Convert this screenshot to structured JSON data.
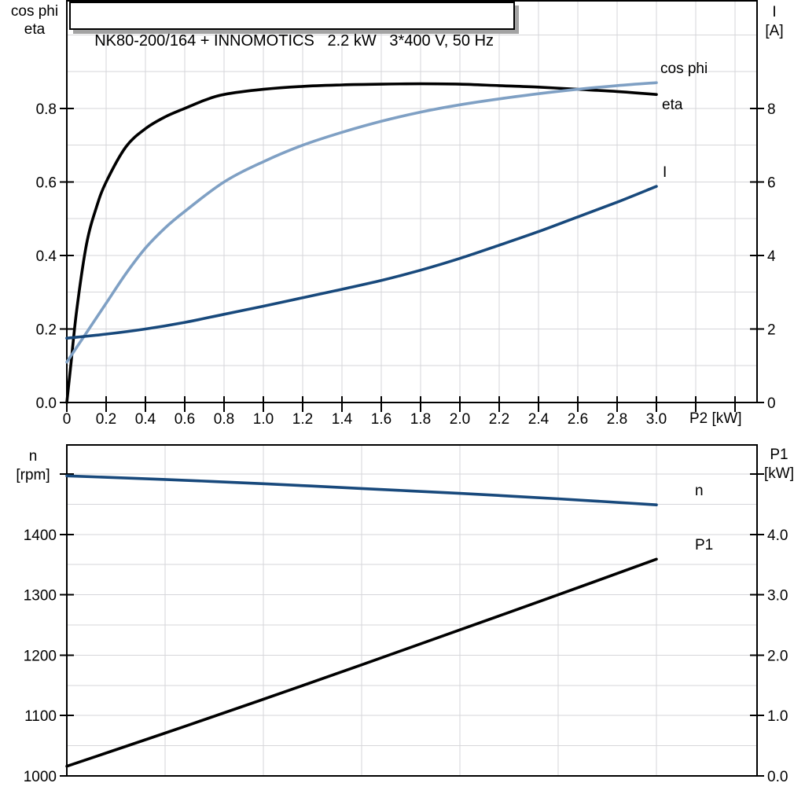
{
  "page": {
    "background": "#ffffff"
  },
  "title_box": {
    "text": "NK80-200/164 + INNOMOTICS   2.2 kW   3*400 V, 50 Hz"
  },
  "colors": {
    "black": "#000000",
    "steel_blue": "#7fa0c4",
    "navy": "#18497c",
    "grid": "#d6d6da",
    "shadow": "#a3a3a3"
  },
  "chart_data": [
    {
      "type": "line",
      "title": "NK80-200/164 + INNOMOTICS   2.2 kW   3*400 V, 50 Hz",
      "x_axis": {
        "label": "P2 [kW]",
        "min": 0,
        "max": 3.512,
        "tick_step": 0.2,
        "major_tick_labels": [
          "0",
          "0.2",
          "0.4",
          "0.6",
          "0.8",
          "1.0",
          "1.2",
          "1.4",
          "1.6",
          "1.8",
          "2.0",
          "2.2",
          "2.4",
          "2.6",
          "2.8",
          "3.0"
        ],
        "unlabeled_ticks": [
          3.2,
          3.4
        ],
        "grid_step": 0.2
      },
      "left_axis": {
        "title_lines": [
          "cos phi",
          "eta"
        ],
        "min": 0,
        "max": 1.095,
        "tick_values": [
          0,
          0.2,
          0.4,
          0.6,
          0.8
        ],
        "tick_labels": [
          "0.0",
          "0.2",
          "0.4",
          "0.6",
          "0.8"
        ],
        "unlabeled_ticks": [],
        "grid_step": 0.1
      },
      "right_axis": {
        "title_lines": [
          "I",
          "[A]"
        ],
        "min": 0,
        "max": 10.95,
        "tick_values": [
          0,
          2,
          4,
          6,
          8
        ],
        "tick_labels": [
          "0",
          "2",
          "4",
          "6",
          "8"
        ],
        "unlabeled_ticks": []
      },
      "legend_position": "inline-right",
      "grid": true,
      "series": [
        {
          "name": "eta",
          "axis": "left",
          "color": "#000000",
          "x": [
            0,
            0.02,
            0.05,
            0.1,
            0.15,
            0.2,
            0.3,
            0.4,
            0.5,
            0.6,
            0.7,
            0.8,
            1.0,
            1.2,
            1.4,
            1.6,
            1.8,
            2.0,
            2.2,
            2.4,
            2.6,
            2.8,
            3.0
          ],
          "y": [
            0,
            0.1,
            0.25,
            0.43,
            0.53,
            0.6,
            0.695,
            0.745,
            0.777,
            0.8,
            0.822,
            0.838,
            0.852,
            0.86,
            0.864,
            0.866,
            0.867,
            0.866,
            0.862,
            0.858,
            0.852,
            0.846,
            0.838
          ]
        },
        {
          "name": "cos phi",
          "axis": "left",
          "color": "#7fa0c4",
          "x": [
            0,
            0.1,
            0.2,
            0.3,
            0.4,
            0.5,
            0.6,
            0.8,
            1.0,
            1.2,
            1.4,
            1.6,
            1.8,
            2.0,
            2.2,
            2.4,
            2.6,
            2.8,
            3.0
          ],
          "y": [
            0.11,
            0.19,
            0.27,
            0.35,
            0.42,
            0.475,
            0.52,
            0.6,
            0.655,
            0.7,
            0.735,
            0.765,
            0.79,
            0.81,
            0.826,
            0.84,
            0.852,
            0.862,
            0.87
          ]
        },
        {
          "name": "I",
          "axis": "right",
          "color": "#18497c",
          "x": [
            0,
            0.2,
            0.4,
            0.6,
            0.8,
            1.0,
            1.2,
            1.4,
            1.6,
            1.8,
            2.0,
            2.2,
            2.4,
            2.6,
            2.8,
            3.0
          ],
          "y": [
            1.75,
            1.86,
            2.0,
            2.18,
            2.4,
            2.62,
            2.85,
            3.08,
            3.32,
            3.6,
            3.92,
            4.28,
            4.65,
            5.05,
            5.45,
            5.88
          ]
        }
      ]
    },
    {
      "type": "line",
      "title": "",
      "x_axis": {
        "label": "",
        "min": 0,
        "max": 3.512,
        "grid_step": 0.5,
        "grid_max": 3.0
      },
      "left_axis": {
        "title_lines": [
          "n",
          "[rpm]"
        ],
        "min": 1000,
        "max": 1549.5,
        "tick_values": [
          1000,
          1100,
          1200,
          1300,
          1400
        ],
        "tick_labels": [
          "1000",
          "1100",
          "1200",
          "1300",
          "1400"
        ],
        "unlabeled_ticks": [
          1500
        ],
        "grid_step": 50
      },
      "right_axis": {
        "title_lines": [
          "P1",
          "[kW]"
        ],
        "min": 0,
        "max": 5.495,
        "tick_values": [
          0,
          1,
          2,
          3,
          4
        ],
        "tick_labels": [
          "0.0",
          "1.0",
          "2.0",
          "3.0",
          "4.0"
        ],
        "unlabeled_ticks": [
          5
        ]
      },
      "grid": true,
      "series": [
        {
          "name": "n",
          "axis": "left",
          "color": "#18497c",
          "x": [
            0,
            0.5,
            1.0,
            1.5,
            2.0,
            2.5,
            3.0
          ],
          "y": [
            1497,
            1491,
            1484,
            1476,
            1468,
            1459,
            1449
          ]
        },
        {
          "name": "P1",
          "axis": "right",
          "color": "#000000",
          "x": [
            0,
            0.5,
            1.0,
            1.5,
            2.0,
            2.5,
            3.0
          ],
          "y": [
            0.16,
            0.71,
            1.27,
            1.84,
            2.42,
            3.0,
            3.59
          ]
        }
      ]
    }
  ]
}
